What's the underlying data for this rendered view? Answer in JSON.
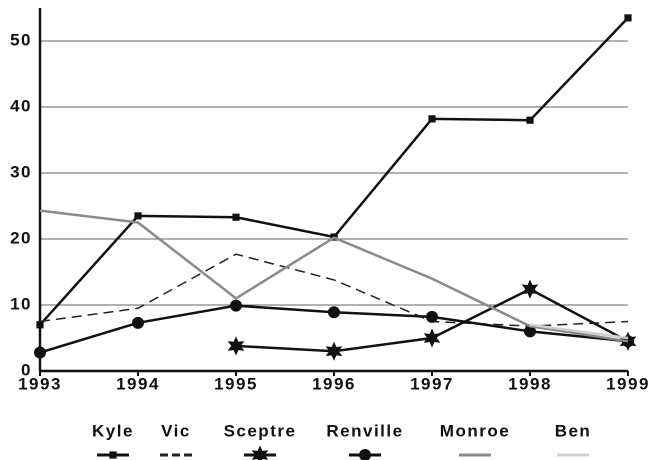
{
  "chart_data": {
    "type": "line",
    "x": [
      1993,
      1994,
      1995,
      1996,
      1997,
      1998,
      1999
    ],
    "xlim": [
      1993,
      1999
    ],
    "xticks": [
      1993,
      1994,
      1995,
      1996,
      1997,
      1998,
      1999
    ],
    "ylim": [
      0,
      55
    ],
    "yticks": [
      0,
      10,
      20,
      30,
      40,
      50
    ],
    "grid": true,
    "legend": "bottom",
    "series": [
      {
        "name": "Kyle",
        "color": "#111111",
        "marker": "square",
        "dash": false,
        "values": [
          7,
          23.5,
          23.3,
          20.3,
          38.2,
          38,
          53.5
        ]
      },
      {
        "name": "Vic",
        "color": "#222222",
        "marker": "none",
        "dash": true,
        "values": [
          7.5,
          9.5,
          17.7,
          13.8,
          7.5,
          6.8,
          7.5
        ]
      },
      {
        "name": "Sceptre",
        "color": "#111111",
        "marker": "star",
        "dash": false,
        "values": [
          null,
          null,
          3.8,
          3,
          5,
          12.4,
          4.5
        ]
      },
      {
        "name": "Renville",
        "color": "#111111",
        "marker": "circle",
        "dash": false,
        "values": [
          2.8,
          7.3,
          9.9,
          8.9,
          8.2,
          6,
          4.5
        ]
      },
      {
        "name": "Monroe",
        "color": "#8a8a8a",
        "marker": "none",
        "dash": false,
        "values": [
          24.3,
          22.5,
          11,
          20.2,
          14,
          6.8,
          4.5
        ]
      },
      {
        "name": "Ben",
        "color": "#d0d0d0",
        "marker": "none",
        "dash": false,
        "values": [
          null,
          null,
          null,
          null,
          null,
          7,
          5
        ]
      }
    ]
  }
}
